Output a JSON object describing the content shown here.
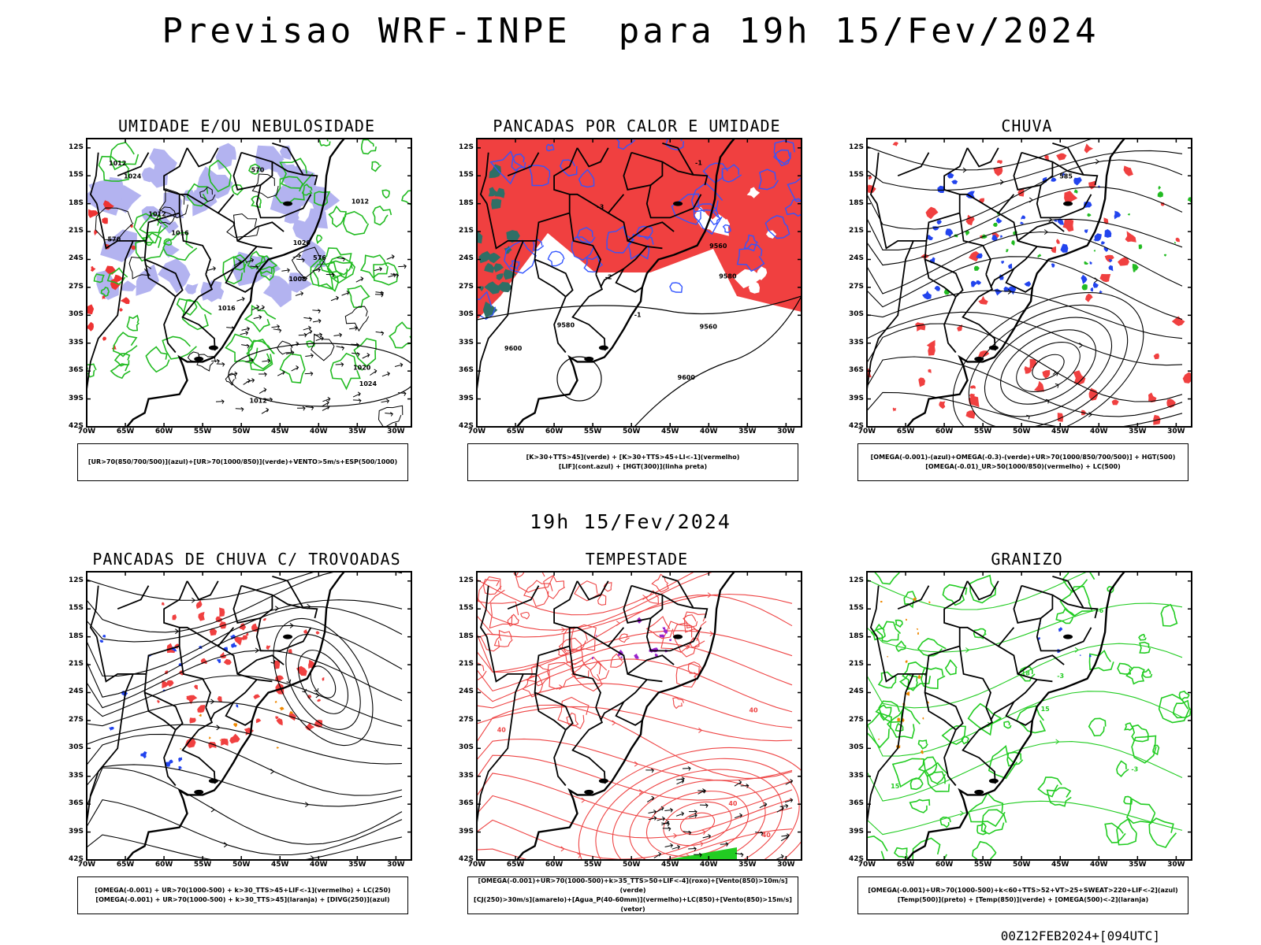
{
  "title": "Previsao WRF-INPE  para 19h 15/Fev/2024",
  "subtitle": "19h 15/Fev/2024",
  "footer": "00Z12FEB2024+[094UTC]",
  "lat_labels": [
    "12S",
    "15S",
    "18S",
    "21S",
    "24S",
    "27S",
    "30S",
    "33S",
    "36S",
    "39S",
    "42S"
  ],
  "lon_labels": [
    "70W",
    "65W",
    "60W",
    "55W",
    "50W",
    "45W",
    "40W",
    "35W",
    "30W"
  ],
  "panels": [
    {
      "title": "UMIDADE E/OU NEBULOSIDADE",
      "legend": [
        "[UR>70(850/700/500)](azul)+[UR>70(1000/850)](verde)+VENTO>5m/s+ESP(500/1000)"
      ],
      "labels": [
        "1012",
        "1012",
        "1012",
        "1012",
        "1016",
        "1016",
        "1020",
        "1020",
        "1024",
        "1024",
        "1008",
        "576",
        "570",
        "570"
      ],
      "colors": {
        "fill1": "#b3b3f0",
        "fill2": "#e5e5ff",
        "green": "#22bb22",
        "red": "#ee3333"
      }
    },
    {
      "title": "PANCADAS POR CALOR E UMIDADE",
      "legend": [
        "[K>30+TTS>45](verde) + [K>30+TTS>45+LI<-1](vermelho)",
        "[LIF](cont.azul) + [HGT(300)](linha preta)"
      ],
      "labels": [
        "9560",
        "9560",
        "9580",
        "9580",
        "9600",
        "9600",
        "-3",
        "-2",
        "-1",
        "-1"
      ],
      "colors": {
        "red": "#f04040",
        "blue": "#3355ff",
        "teal": "#2f6f66"
      }
    },
    {
      "title": "CHUVA",
      "legend": [
        "[OMEGA(-0.001)-(azul)+OMEGA(-0.3)-(verde)+UR>70(1000/850/700/500)] + HGT(500)",
        "[OMEGA(-0.01)_UR>50(1000/850)(vermelho) + LC(500)"
      ],
      "labels": [
        "585"
      ],
      "colors": {
        "red": "#f04040",
        "blue": "#2244ee",
        "green": "#22bb22"
      }
    },
    {
      "title": "PANCADAS DE CHUVA C/ TROVOADAS",
      "legend": [
        "[OMEGA(-0.001) + UR>70(1000-500) + k>30_TTS>45+LIF<-1](vermelho) + LC(250)",
        "[OMEGA(-0.001) + UR>70(1000-500) + k>30_TTS>45](laranja) + [DIVG(250)](azul)"
      ],
      "labels": [],
      "colors": {
        "red": "#f04040",
        "blue": "#2244ee",
        "orange": "#ee8800"
      }
    },
    {
      "title": "TEMPESTADE",
      "legend": [
        "[OMEGA(-0.001)+UR>70(1000-500)+k>35_TTS>50+LIF<-4](roxo)+[Vento(850)>10m/s](verde)",
        "[CJ(250)>30m/s](amarelo)+[Agua_P(40-60mm)](vermelho)+LC(850)+[Vento(850)>15m/s](vetor)"
      ],
      "labels": [
        "40",
        "40",
        "40",
        "40"
      ],
      "colors": {
        "red": "#ee4444",
        "purple": "#9922cc",
        "green": "#22cc22"
      }
    },
    {
      "title": "GRANIZO",
      "legend": [
        "[OMEGA(-0.001)+UR>70(1000-500)+k<60+TTS>52+VT>25+SWEAT>220+LIF<-2](azul)",
        "[Temp(500)](preto) + [Temp(850)](verde) + [OMEGA(500)<-2](laranja)"
      ],
      "labels": [
        "-3",
        "-3",
        "15",
        "15",
        "18",
        "-6"
      ],
      "colors": {
        "green": "#22cc22",
        "orange": "#ee8800",
        "blue": "#2244ee"
      }
    }
  ]
}
